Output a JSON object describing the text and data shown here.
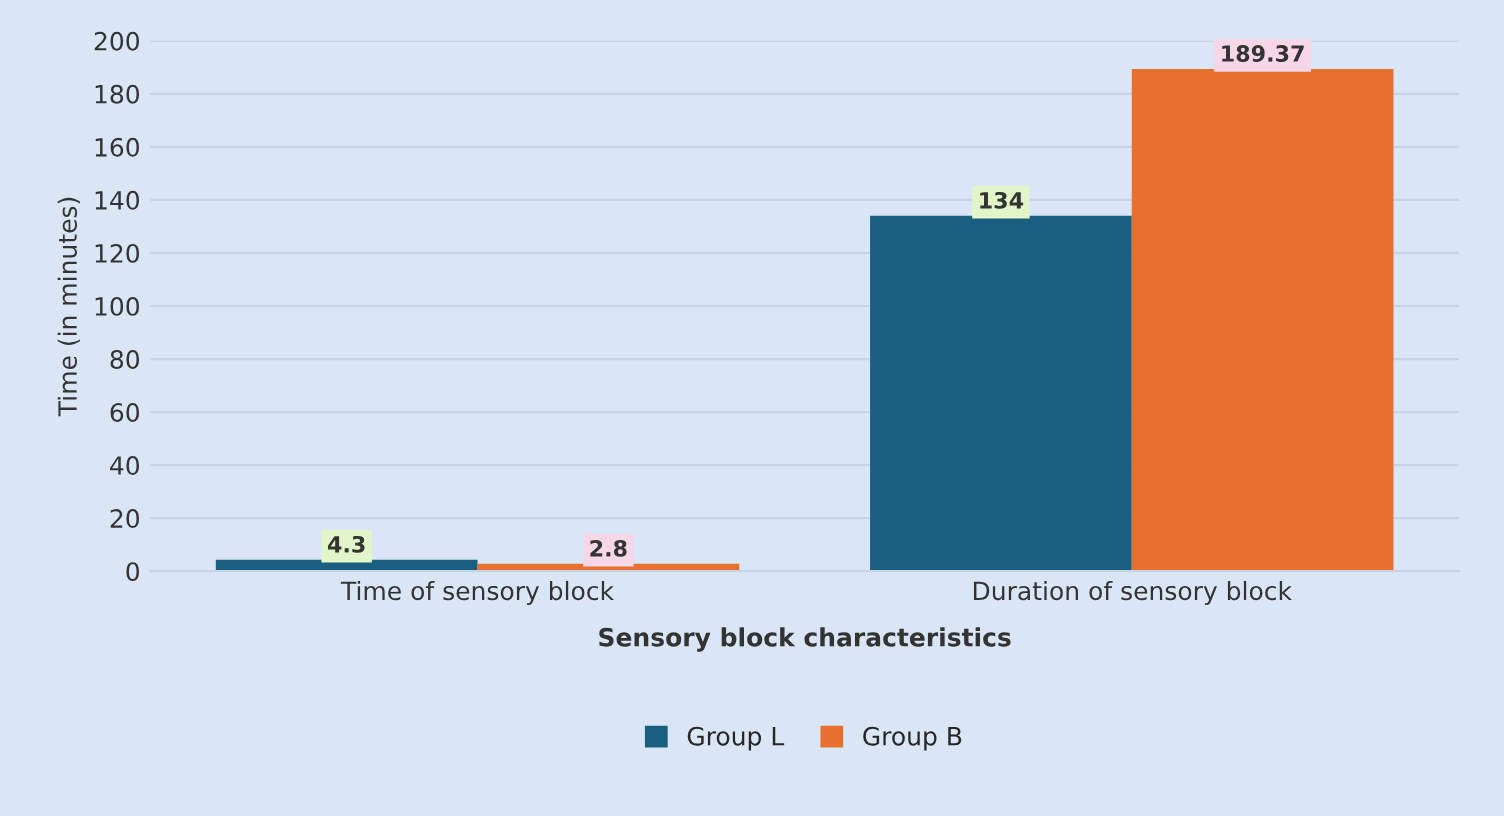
{
  "chart_data": {
    "type": "bar",
    "xlabel": "Sensory block characteristics",
    "ylabel": "Time (in minutes)",
    "categories": [
      "Time of sensory block",
      "Duration of sensory block"
    ],
    "series": [
      {
        "name": "Group L",
        "color": "#1a5f80",
        "values": [
          4.3,
          134
        ]
      },
      {
        "name": "Group B",
        "color": "#e8702f",
        "values": [
          2.8,
          189.37
        ]
      }
    ],
    "ylim": [
      0,
      200
    ],
    "yticks": [
      0,
      20,
      40,
      60,
      80,
      100,
      120,
      140,
      160,
      180,
      200
    ],
    "grid": "y",
    "legend": "bottom",
    "data_labels": true
  }
}
